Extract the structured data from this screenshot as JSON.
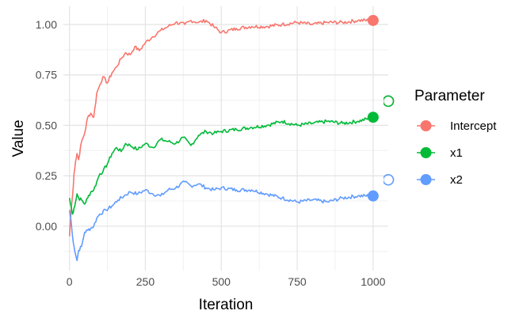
{
  "chart_data": {
    "type": "line",
    "title": "",
    "xlabel": "Iteration",
    "ylabel": "Value",
    "xlim": [
      -20,
      1050
    ],
    "ylim": [
      -0.22,
      1.09
    ],
    "x_ticks": [
      0,
      250,
      500,
      750,
      1000
    ],
    "x_tick_labels": [
      "0",
      "250",
      "500",
      "750",
      "1000"
    ],
    "y_ticks": [
      0.0,
      0.25,
      0.5,
      0.75,
      1.0
    ],
    "y_tick_labels": [
      "0.00",
      "0.25",
      "0.50",
      "0.75",
      "1.00"
    ],
    "grid": true,
    "legend": {
      "title": "Parameter",
      "position": "right",
      "entries": [
        "Intercept",
        "x1",
        "x2"
      ]
    },
    "series": [
      {
        "name": "Intercept",
        "color": "#F8766D",
        "x": [
          0,
          5,
          10,
          15,
          20,
          25,
          30,
          40,
          50,
          60,
          70,
          80,
          90,
          100,
          110,
          125,
          140,
          155,
          170,
          185,
          200,
          215,
          230,
          250,
          275,
          300,
          325,
          350,
          380,
          400,
          425,
          450,
          475,
          500,
          550,
          600,
          650,
          700,
          750,
          800,
          850,
          900,
          950,
          1000
        ],
        "y": [
          -0.05,
          0.07,
          0.15,
          0.26,
          0.32,
          0.36,
          0.33,
          0.42,
          0.46,
          0.54,
          0.56,
          0.54,
          0.66,
          0.7,
          0.74,
          0.71,
          0.76,
          0.79,
          0.83,
          0.86,
          0.85,
          0.89,
          0.87,
          0.91,
          0.94,
          0.97,
          0.99,
          1.01,
          1.0,
          1.02,
          1.01,
          1.02,
          0.99,
          0.96,
          0.98,
          0.99,
          0.99,
          1.0,
          1.01,
          1.0,
          1.01,
          1.01,
          1.02,
          1.02
        ],
        "end_point": [
          1000,
          1.02
        ],
        "partial_point": [
          1050,
          0.62
        ]
      },
      {
        "name": "x1",
        "color": "#00BA38",
        "x": [
          0,
          5,
          10,
          15,
          20,
          25,
          30,
          40,
          50,
          60,
          70,
          80,
          90,
          100,
          110,
          125,
          140,
          155,
          170,
          185,
          200,
          225,
          250,
          275,
          300,
          325,
          350,
          375,
          400,
          425,
          450,
          475,
          500,
          550,
          600,
          650,
          700,
          750,
          800,
          850,
          900,
          950,
          1000
        ],
        "y": [
          0.14,
          0.1,
          0.06,
          0.09,
          0.12,
          0.16,
          0.14,
          0.13,
          0.11,
          0.14,
          0.17,
          0.18,
          0.22,
          0.26,
          0.27,
          0.31,
          0.36,
          0.39,
          0.37,
          0.41,
          0.4,
          0.38,
          0.41,
          0.39,
          0.43,
          0.42,
          0.41,
          0.44,
          0.4,
          0.45,
          0.47,
          0.46,
          0.47,
          0.48,
          0.49,
          0.5,
          0.52,
          0.5,
          0.51,
          0.52,
          0.51,
          0.52,
          0.54
        ],
        "end_point": [
          1000,
          0.54
        ],
        "partial_point": [
          1050,
          0.62
        ]
      },
      {
        "name": "x2",
        "color": "#619CFF",
        "x": [
          0,
          5,
          10,
          15,
          20,
          25,
          30,
          40,
          50,
          60,
          70,
          80,
          90,
          100,
          120,
          140,
          160,
          180,
          200,
          225,
          250,
          275,
          300,
          325,
          350,
          380,
          400,
          425,
          450,
          475,
          500,
          550,
          600,
          650,
          700,
          750,
          800,
          850,
          900,
          950,
          1000
        ],
        "y": [
          0.08,
          0.03,
          -0.05,
          -0.1,
          -0.14,
          -0.17,
          -0.12,
          -0.1,
          -0.03,
          -0.02,
          -0.01,
          0.0,
          0.04,
          0.06,
          0.08,
          0.1,
          0.13,
          0.15,
          0.17,
          0.16,
          0.18,
          0.16,
          0.15,
          0.18,
          0.19,
          0.22,
          0.2,
          0.21,
          0.19,
          0.18,
          0.19,
          0.18,
          0.18,
          0.16,
          0.14,
          0.12,
          0.13,
          0.12,
          0.14,
          0.15,
          0.15
        ],
        "end_point": [
          1000,
          0.15
        ],
        "partial_point": [
          1050,
          0.23
        ]
      }
    ]
  }
}
